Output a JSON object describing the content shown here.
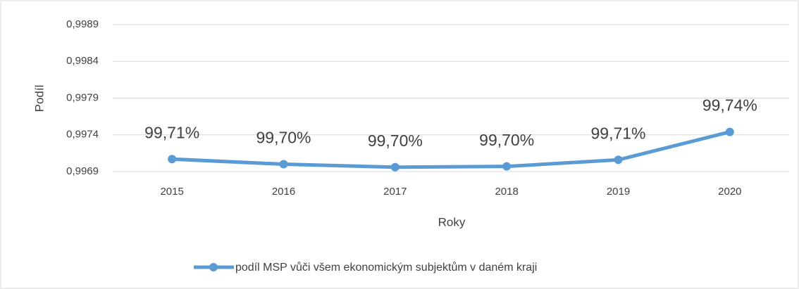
{
  "chart_data": {
    "type": "line",
    "x_label": "Roky",
    "y_label": "Podíl",
    "categories": [
      "2015",
      "2016",
      "2017",
      "2018",
      "2019",
      "2020"
    ],
    "series": [
      {
        "name": "podíl MSP vůči všem ekonomickým subjektům v daném kraji",
        "color": "#5b9bd5",
        "values": [
          0.99707,
          0.997,
          0.99696,
          0.99697,
          0.99706,
          0.99744
        ],
        "value_labels": [
          "99,71%",
          "99,70%",
          "99,70%",
          "99,70%",
          "99,71%",
          "99,74%"
        ]
      }
    ],
    "ylim": [
      0.9969,
      0.9989
    ],
    "yticks": [
      {
        "value": 0.9969,
        "label": "0,9969"
      },
      {
        "value": 0.9974,
        "label": "0,9974"
      },
      {
        "value": 0.9979,
        "label": "0,9979"
      },
      {
        "value": 0.9984,
        "label": "0,9984"
      },
      {
        "value": 0.9989,
        "label": "0,9989"
      }
    ],
    "grid": true,
    "legend": "bottom"
  }
}
